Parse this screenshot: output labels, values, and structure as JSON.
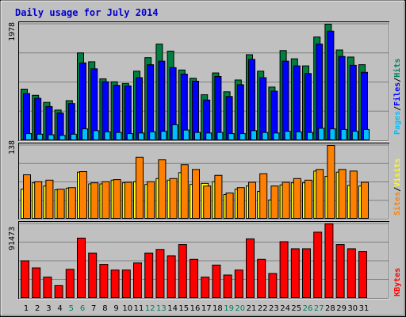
{
  "title": "Daily usage for July 2014",
  "colors": {
    "hits": "#008040",
    "files": "#0000ff",
    "pages": "#00c0ff",
    "sites": "#ff8000",
    "visits": "#ffff00",
    "kbytes": "#ff0000",
    "separator": "#000000",
    "weekday_label": "#000000",
    "weekend_label": "#00805c",
    "legend_pages": "#00c0ff",
    "legend_files": "#0000ff",
    "legend_hits": "#00805c",
    "legend_sites": "#ff8000",
    "legend_visits": "#ffff00",
    "legend_kbytes": "#ff0000"
  },
  "legend": {
    "pages": "Pages",
    "files": "Files",
    "hits": "Hits",
    "sites": "Sites",
    "visits": "Visits",
    "kbytes": "KBytes",
    "sep": "/"
  },
  "chart_data": [
    {
      "type": "bar",
      "title": "Daily usage for July 2014",
      "ylabel_max": "1978",
      "ylim": [
        0,
        1978
      ],
      "categories": [
        "1",
        "2",
        "3",
        "4",
        "5",
        "6",
        "7",
        "8",
        "9",
        "10",
        "11",
        "12",
        "13",
        "14",
        "15",
        "16",
        "17",
        "18",
        "19",
        "20",
        "21",
        "22",
        "23",
        "24",
        "25",
        "26",
        "27",
        "28",
        "29",
        "30",
        "31"
      ],
      "weekend_days": [
        "5",
        "6",
        "12",
        "13",
        "19",
        "20",
        "26",
        "27"
      ],
      "series": [
        {
          "name": "Hits",
          "values": [
            875,
            770,
            650,
            520,
            680,
            1490,
            1340,
            1050,
            1000,
            970,
            1180,
            1410,
            1640,
            1520,
            1200,
            1060,
            780,
            1150,
            830,
            1030,
            1460,
            1180,
            910,
            1530,
            1390,
            1270,
            1760,
            1978,
            1540,
            1420,
            1290
          ]
        },
        {
          "name": "Files",
          "values": [
            800,
            720,
            580,
            470,
            630,
            1320,
            1220,
            1000,
            940,
            930,
            1070,
            1290,
            1350,
            1240,
            1130,
            1010,
            690,
            1090,
            750,
            950,
            1380,
            1070,
            840,
            1350,
            1270,
            1140,
            1640,
            1860,
            1430,
            1280,
            1160
          ]
        },
        {
          "name": "Pages",
          "values": [
            120,
            110,
            100,
            90,
            110,
            200,
            170,
            150,
            140,
            120,
            130,
            150,
            160,
            270,
            180,
            140,
            130,
            140,
            120,
            120,
            170,
            140,
            130,
            160,
            150,
            140,
            210,
            200,
            190,
            160,
            190
          ]
        }
      ]
    },
    {
      "type": "bar",
      "ylabel_max": "138",
      "ylim": [
        0,
        138
      ],
      "categories": [
        "1",
        "2",
        "3",
        "4",
        "5",
        "6",
        "7",
        "8",
        "9",
        "10",
        "11",
        "12",
        "13",
        "14",
        "15",
        "16",
        "17",
        "18",
        "19",
        "20",
        "21",
        "22",
        "23",
        "24",
        "25",
        "26",
        "27",
        "28",
        "29",
        "30",
        "31"
      ],
      "series": [
        {
          "name": "Sites",
          "values": [
            83,
            70,
            73,
            56,
            59,
            89,
            68,
            70,
            74,
            69,
            116,
            70,
            111,
            76,
            102,
            93,
            62,
            82,
            49,
            59,
            69,
            85,
            62,
            69,
            76,
            73,
            93,
            138,
            93,
            90,
            69
          ]
        },
        {
          "name": "Visits",
          "values": [
            56,
            68,
            62,
            55,
            58,
            88,
            66,
            66,
            73,
            68,
            70,
            65,
            76,
            73,
            87,
            65,
            67,
            70,
            46,
            56,
            62,
            52,
            36,
            64,
            68,
            68,
            90,
            80,
            88,
            63,
            62
          ]
        }
      ]
    },
    {
      "type": "bar",
      "ylabel_max": "91473",
      "ylim": [
        0,
        91473
      ],
      "categories": [
        "1",
        "2",
        "3",
        "4",
        "5",
        "6",
        "7",
        "8",
        "9",
        "10",
        "11",
        "12",
        "13",
        "14",
        "15",
        "16",
        "17",
        "18",
        "19",
        "20",
        "21",
        "22",
        "23",
        "24",
        "25",
        "26",
        "27",
        "28",
        "29",
        "30",
        "31"
      ],
      "series": [
        {
          "name": "KBytes",
          "values": [
            46150,
            37440,
            26130,
            15670,
            35700,
            74000,
            55700,
            41800,
            34800,
            34800,
            43500,
            55700,
            60100,
            52200,
            66100,
            47900,
            26100,
            40900,
            28700,
            34800,
            73100,
            47900,
            30500,
            69600,
            60900,
            60900,
            81300,
            91473,
            66100,
            60900,
            57400
          ]
        }
      ]
    }
  ]
}
